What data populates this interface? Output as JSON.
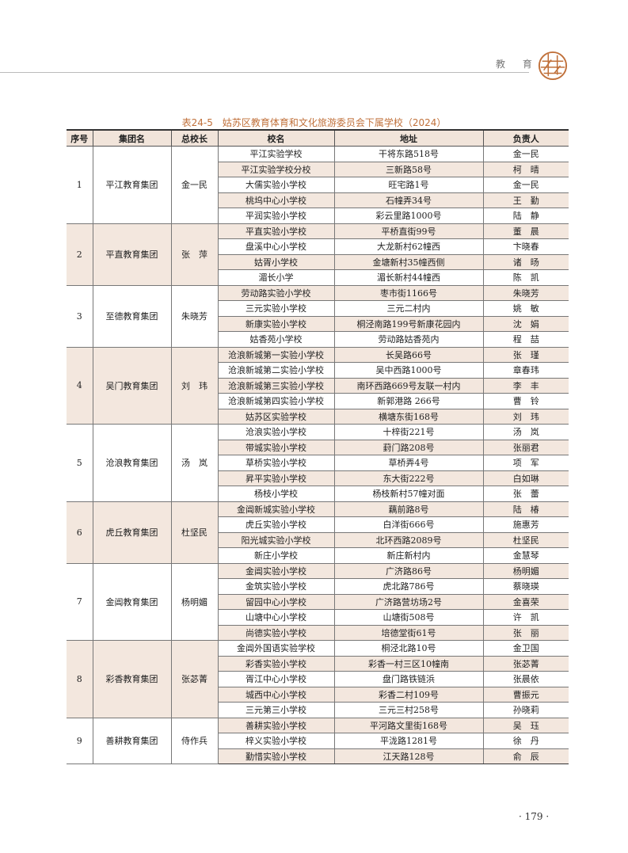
{
  "header": {
    "section": "教 育",
    "seal_text": "教育"
  },
  "title": "表24-5　姑苏区教育体育和文化旅游委员会下属学校（2024）",
  "columns": [
    "序号",
    "集团名",
    "总校长",
    "校名",
    "地址",
    "负责人"
  ],
  "groups": [
    {
      "no": "1",
      "name": "平江教育集团",
      "principal": "金一民",
      "schools": [
        {
          "school": "平江实验学校",
          "address": "干将东路518号",
          "head": "金一民"
        },
        {
          "school": "平江实验学校分校",
          "address": "三新路58号",
          "head": "柯　晴"
        },
        {
          "school": "大儒实验小学校",
          "address": "旺宅路1号",
          "head": "金一民"
        },
        {
          "school": "桃坞中心小学校",
          "address": "石幢弄34号",
          "head": "王　勤"
        },
        {
          "school": "平润实验小学校",
          "address": "彩云里路1000号",
          "head": "陆　静"
        }
      ]
    },
    {
      "no": "2",
      "name": "平直教育集团",
      "principal": "张　萍",
      "schools": [
        {
          "school": "平直实验小学校",
          "address": "平桥直街99号",
          "head": "董　晨"
        },
        {
          "school": "盘溪中心小学校",
          "address": "大龙新村62幢西",
          "head": "卞晓春"
        },
        {
          "school": "姑胥小学校",
          "address": "金塘新村35幢西侧",
          "head": "诸　旸"
        },
        {
          "school": "湄长小学",
          "address": "湄长新村44幢西",
          "head": "陈　凯"
        }
      ]
    },
    {
      "no": "3",
      "name": "至德教育集团",
      "principal": "朱晓芳",
      "schools": [
        {
          "school": "劳动路实验小学校",
          "address": "枣市街1166号",
          "head": "朱晓芳"
        },
        {
          "school": "三元实验小学校",
          "address": "三元二村内",
          "head": "姚　敏"
        },
        {
          "school": "新康实验小学校",
          "address": "桐泾南路199号新康花园内",
          "head": "沈　娟"
        },
        {
          "school": "姑香苑小学校",
          "address": "劳动路姑香苑内",
          "head": "程　喆"
        }
      ]
    },
    {
      "no": "4",
      "name": "吴门教育集团",
      "principal": "刘　玮",
      "schools": [
        {
          "school": "沧浪新城第一实验小学校",
          "address": "长吴路66号",
          "head": "张　瑾"
        },
        {
          "school": "沧浪新城第二实验小学校",
          "address": "吴中西路1000号",
          "head": "章春玮"
        },
        {
          "school": "沧浪新城第三实验小学校",
          "address": "南环西路669号友联一村内",
          "head": "李　丰"
        },
        {
          "school": "沧浪新城第四实验小学校",
          "address": "新郭港路 266号",
          "head": "曹　铃"
        },
        {
          "school": "姑苏区实验学校",
          "address": "横塘东街168号",
          "head": "刘　玮"
        }
      ]
    },
    {
      "no": "5",
      "name": "沧浪教育集团",
      "principal": "汤　岚",
      "schools": [
        {
          "school": "沧浪实验小学校",
          "address": "十梓街221号",
          "head": "汤　岚"
        },
        {
          "school": "带城实验小学校",
          "address": "葑门路208号",
          "head": "张丽君"
        },
        {
          "school": "草桥实验小学校",
          "address": "草桥弄4号",
          "head": "项　军"
        },
        {
          "school": "昇平实验小学校",
          "address": "东大街222号",
          "head": "白如琳"
        },
        {
          "school": "杨枝小学校",
          "address": "杨枝新村57幢对面",
          "head": "张　蕾"
        }
      ]
    },
    {
      "no": "6",
      "name": "虎丘教育集团",
      "principal": "杜坚民",
      "schools": [
        {
          "school": "金阊新城实验小学校",
          "address": "藕前路8号",
          "head": "陆　椿"
        },
        {
          "school": "虎丘实验小学校",
          "address": "白洋街666号",
          "head": "施惠芳"
        },
        {
          "school": "阳光城实验小学校",
          "address": "北环西路2089号",
          "head": "杜坚民"
        },
        {
          "school": "新庄小学校",
          "address": "新庄新村内",
          "head": "金慧琴"
        }
      ]
    },
    {
      "no": "7",
      "name": "金阊教育集团",
      "principal": "杨明媚",
      "schools": [
        {
          "school": "金阊实验小学校",
          "address": "广济路86号",
          "head": "杨明媚"
        },
        {
          "school": "金筑实验小学校",
          "address": "虎北路786号",
          "head": "蔡晓瑛"
        },
        {
          "school": "留园中心小学校",
          "address": "广济路营坊场2号",
          "head": "金喜荣"
        },
        {
          "school": "山塘中心小学校",
          "address": "山塘街508号",
          "head": "许　凯"
        },
        {
          "school": "尚德实验小学校",
          "address": "培德堂街61号",
          "head": "张　丽"
        }
      ]
    },
    {
      "no": "8",
      "name": "彩香教育集团",
      "principal": "张苾菁",
      "schools": [
        {
          "school": "金阊外国语实验学校",
          "address": "桐泾北路10号",
          "head": "金卫国"
        },
        {
          "school": "彩香实验小学校",
          "address": "彩香一村三区10幢南",
          "head": "张苾菁"
        },
        {
          "school": "胥江中心小学校",
          "address": "盘门路铁链浜",
          "head": "张晨依"
        },
        {
          "school": "城西中心小学校",
          "address": "彩香二村109号",
          "head": "曹振元"
        },
        {
          "school": "三元第三小学校",
          "address": "三元三村258号",
          "head": "孙晓莉"
        }
      ]
    },
    {
      "no": "9",
      "name": "善耕教育集团",
      "principal": "侍作兵",
      "schools": [
        {
          "school": "善耕实验小学校",
          "address": "平河路文里街168号",
          "head": "吴　珏"
        },
        {
          "school": "梓义实验小学校",
          "address": "平泷路1281号",
          "head": "徐　丹"
        },
        {
          "school": "勤惜实验小学校",
          "address": "江天路128号",
          "head": "俞　辰"
        }
      ]
    }
  ],
  "page_number": "· 179 ·",
  "colors": {
    "accent": "#c0703a",
    "shade": "#f3e7de"
  }
}
